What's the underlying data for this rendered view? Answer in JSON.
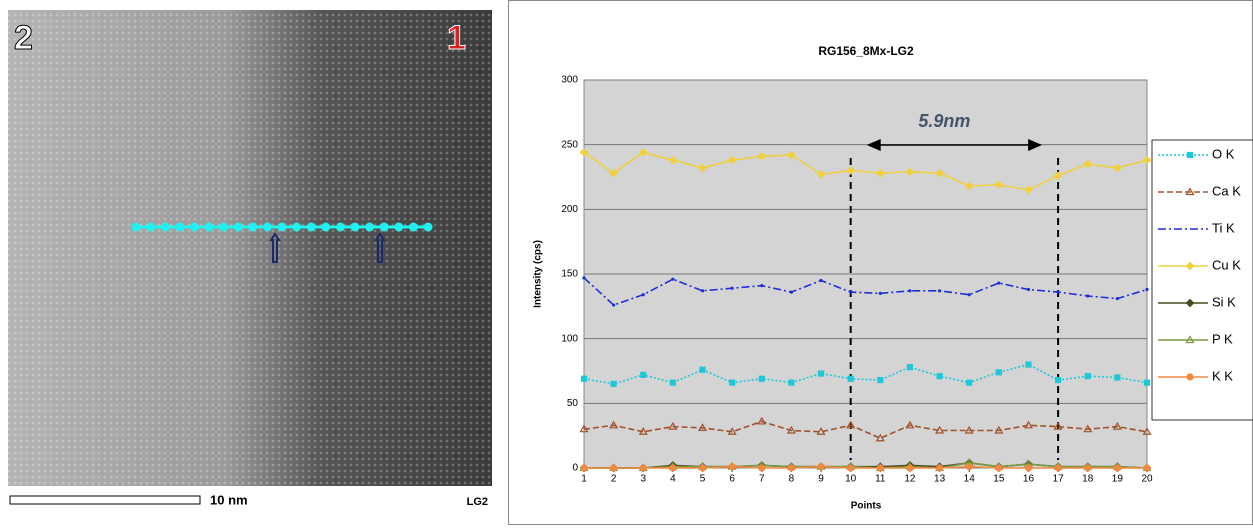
{
  "image": {
    "label_left": "2",
    "label_right": "1",
    "scale_bar": "10 nm",
    "tag": "LG2"
  },
  "chart_data": {
    "type": "line",
    "title": "RG156_8Mx-LG2",
    "x_label": "Points",
    "y_label": "Intensity (cps)",
    "categories": [
      "1",
      "2",
      "3",
      "4",
      "5",
      "6",
      "7",
      "8",
      "9",
      "10",
      "11",
      "12",
      "13",
      "14",
      "15",
      "16",
      "17",
      "18",
      "19",
      "20"
    ],
    "ylim": [
      0,
      300
    ],
    "yticks": [
      0,
      50,
      100,
      150,
      200,
      250,
      300
    ],
    "grid": true,
    "annotation": {
      "text": "5.9nm",
      "from": 10,
      "to": 17
    },
    "series": [
      {
        "name": "O K",
        "color": "#1fc8d8",
        "dash": "dot",
        "marker": "square",
        "values": [
          69,
          65,
          72,
          66,
          76,
          66,
          69,
          66,
          73,
          69,
          68,
          78,
          71,
          66,
          74,
          80,
          68,
          71,
          70,
          66
        ]
      },
      {
        "name": "Ca K",
        "color": "#a0522d",
        "dash": "dash",
        "marker": "triangle",
        "values": [
          30,
          33,
          28,
          32,
          31,
          28,
          36,
          29,
          28,
          33,
          23,
          33,
          29,
          29,
          29,
          33,
          32,
          30,
          32,
          28
        ]
      },
      {
        "name": "Ti K",
        "color": "#1f2fd8",
        "dash": "dashdot",
        "marker": "none",
        "values": [
          147,
          126,
          134,
          146,
          137,
          139,
          141,
          136,
          145,
          136,
          135,
          137,
          137,
          134,
          143,
          138,
          136,
          133,
          131,
          138
        ]
      },
      {
        "name": "Cu K",
        "color": "#f0d040",
        "dash": "solid",
        "marker": "diamond",
        "values": [
          244,
          228,
          244,
          238,
          232,
          238,
          241,
          242,
          227,
          230,
          228,
          229,
          228,
          218,
          219,
          215,
          226,
          235,
          232,
          238
        ]
      },
      {
        "name": "Si K",
        "color": "#4a4a20",
        "dash": "solid",
        "marker": "diamond",
        "values": [
          0,
          0,
          0,
          2,
          1,
          1,
          2,
          1,
          1,
          1,
          1,
          2,
          1,
          4,
          1,
          3,
          1,
          1,
          1,
          0
        ]
      },
      {
        "name": "P K",
        "color": "#7a9a40",
        "dash": "solid",
        "marker": "triangle",
        "values": [
          0,
          0,
          0,
          1,
          1,
          1,
          2,
          1,
          1,
          1,
          0,
          1,
          0,
          4,
          1,
          3,
          1,
          1,
          1,
          0
        ]
      },
      {
        "name": "K K",
        "color": "#f08a40",
        "dash": "solid",
        "marker": "circle",
        "values": [
          0,
          0,
          0,
          0,
          0,
          1,
          0,
          0,
          1,
          0,
          0,
          0,
          0,
          1,
          0,
          0,
          0,
          0,
          0,
          0
        ]
      }
    ]
  }
}
